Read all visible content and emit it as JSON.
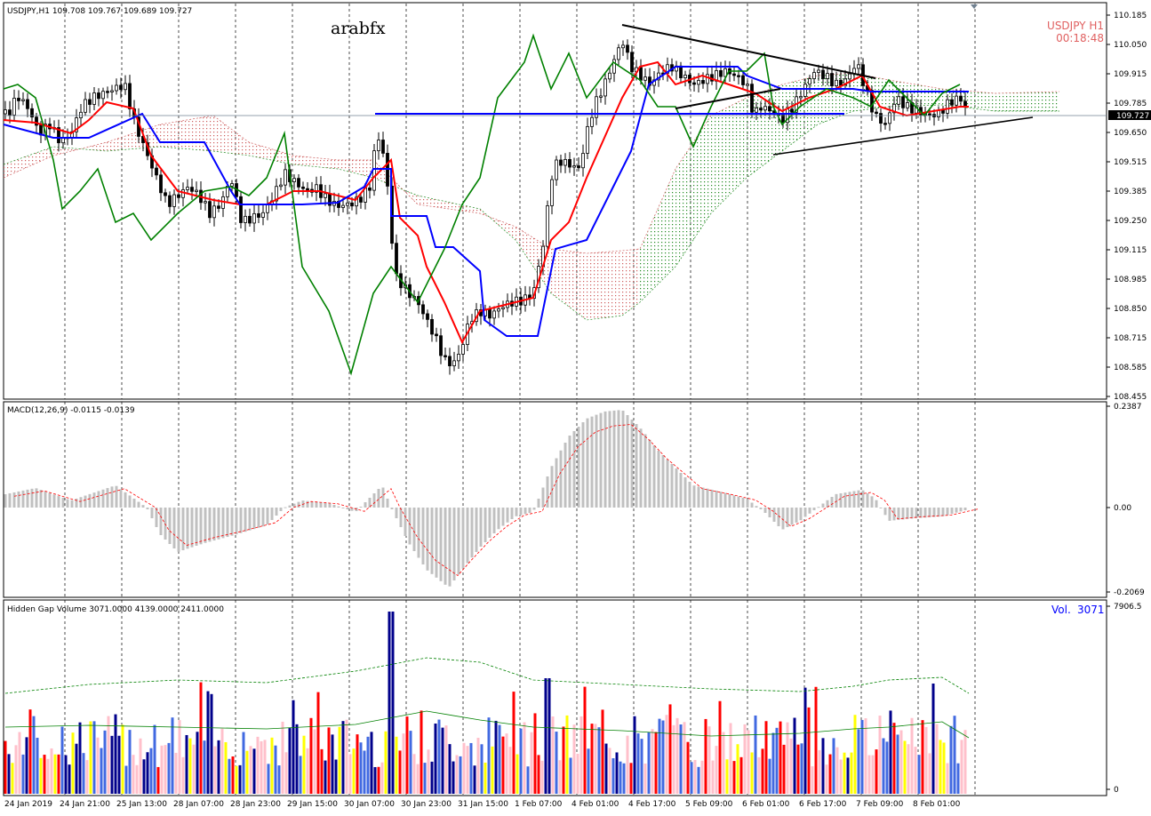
{
  "chart_data": {
    "type": "candlestick",
    "panes": [
      {
        "id": "price",
        "header": "USDJPY,H1  109.708 109.767 109.689 109.727",
        "watermark": "arabfx",
        "symbol_label": "USDJPY  H1",
        "timer": "00:18:48",
        "yticks": [
          "110.185",
          "110.050",
          "109.915",
          "109.785",
          "109.650",
          "109.515",
          "109.385",
          "109.250",
          "109.115",
          "108.985",
          "108.850",
          "108.715",
          "108.585",
          "108.455"
        ],
        "ylim": [
          108.44,
          110.2
        ],
        "current_price": "109.727",
        "indicators": [
          "Ichimoku Kinko Hyo",
          "Trendlines"
        ]
      },
      {
        "id": "macd",
        "header": "MACD(12,26,9) -0.0115 -0.0139",
        "yticks": [
          "0.2387",
          "0.00",
          "-0.2069"
        ],
        "ylim": [
          -0.2069,
          0.2387
        ]
      },
      {
        "id": "volume",
        "header": "Hidden Gap Volume 3071.0000 4139.0000 2411.0000",
        "vol_label": "Vol.",
        "vol_value": "3071",
        "yticks": [
          "7906.5",
          "0"
        ],
        "ylim": [
          0,
          7906.5
        ]
      }
    ],
    "xticks": [
      "24 Jan 2019",
      "24 Jan 21:00",
      "25 Jan 13:00",
      "28 Jan 07:00",
      "28 Jan 23:00",
      "29 Jan 15:00",
      "30 Jan 07:00",
      "30 Jan 23:00",
      "31 Jan 15:00",
      "1 Feb 07:00",
      "4 Feb 01:00",
      "4 Feb 17:00",
      "5 Feb 09:00",
      "6 Feb 01:00",
      "6 Feb 17:00",
      "7 Feb 09:00",
      "8 Feb 01:00"
    ],
    "grid": true
  },
  "colors": {
    "background": "#ffffff",
    "bull_candle": "#000000",
    "tenkan": "#ff0000",
    "kijun": "#0000ff",
    "chikou": "#008000",
    "cloud_bull": "#228b22",
    "cloud_bear": "#cd5c5c",
    "macd_hist": "#c0c0c0",
    "macd_signal": "#ff0000",
    "vol_navy": "#00008b",
    "vol_royal": "#4169e1",
    "vol_pink": "#ffc0cb",
    "vol_red": "#ff0000",
    "vol_yellow": "#ffff00",
    "symbol_text": "#e06060",
    "vol_text": "#0000ff"
  }
}
